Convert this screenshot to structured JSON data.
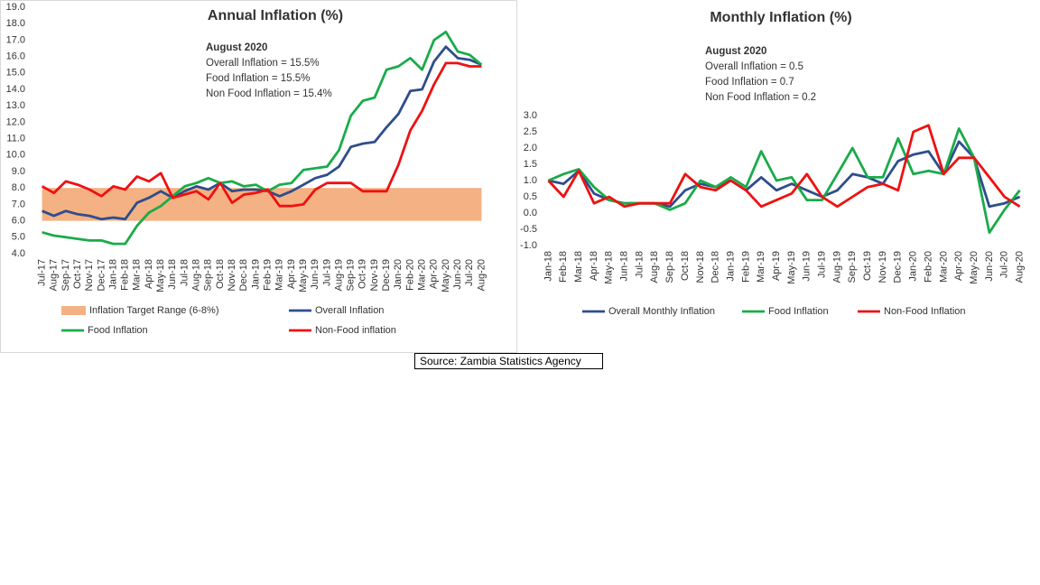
{
  "chart_data": [
    {
      "type": "line",
      "title": "Annual Inflation (%)",
      "annotations": [
        "August 2020",
        "Overall Inflation = 15.5%",
        "Food Inflation = 15.5%",
        "Non Food Inflation = 15.4%"
      ],
      "categories": [
        "Jul-17",
        "Aug-17",
        "Sep-17",
        "Oct-17",
        "Nov-17",
        "Dec-17",
        "Jan-18",
        "Feb-18",
        "Mar-18",
        "Apr-18",
        "May-18",
        "Jun-18",
        "Jul-18",
        "Aug-18",
        "Sep-18",
        "Oct-18",
        "Nov-18",
        "Dec-18",
        "Jan-19",
        "Feb-19",
        "Mar-19",
        "Apr-19",
        "May-19",
        "Jun-19",
        "Jul-19",
        "Aug-19",
        "Sep-19",
        "Oct-19",
        "Nov-19",
        "Dec-19",
        "Jan-20",
        "Feb-20",
        "Mar-20",
        "Apr-20",
        "May-20",
        "Jun-20",
        "Jul-20",
        "Aug-20"
      ],
      "band": {
        "name": "Inflation Target Range (6-8%)",
        "range": [
          6,
          8
        ],
        "color": "#f4b183"
      },
      "series": [
        {
          "name": "Overall Inflation",
          "color": "#2e4d8c",
          "values": [
            6.6,
            6.3,
            6.6,
            6.4,
            6.3,
            6.1,
            6.2,
            6.1,
            7.1,
            7.4,
            7.8,
            7.4,
            7.8,
            8.1,
            7.9,
            8.3,
            7.8,
            7.9,
            7.9,
            7.8,
            7.5,
            7.8,
            8.2,
            8.6,
            8.8,
            9.3,
            10.5,
            10.7,
            10.8,
            11.7,
            12.5,
            13.9,
            14.0,
            15.7,
            16.6,
            15.9,
            15.8,
            15.5
          ]
        },
        {
          "name": "Food Inflation",
          "color": "#1aab4a",
          "values": [
            5.3,
            5.1,
            5.0,
            4.9,
            4.8,
            4.8,
            4.6,
            4.6,
            5.7,
            6.5,
            6.9,
            7.5,
            8.1,
            8.3,
            8.6,
            8.3,
            8.4,
            8.1,
            8.2,
            7.8,
            8.2,
            8.3,
            9.1,
            9.2,
            9.3,
            10.3,
            12.4,
            13.3,
            13.5,
            15.2,
            15.4,
            15.9,
            15.2,
            17.0,
            17.5,
            16.3,
            16.1,
            15.5
          ]
        },
        {
          "name": "Non-Food inflation",
          "color": "#ee1111",
          "values": [
            8.1,
            7.7,
            8.4,
            8.2,
            7.9,
            7.5,
            8.1,
            7.9,
            8.7,
            8.4,
            8.9,
            7.4,
            7.6,
            7.8,
            7.3,
            8.3,
            7.1,
            7.6,
            7.7,
            7.9,
            6.9,
            6.9,
            7.0,
            7.9,
            8.3,
            8.3,
            8.3,
            7.8,
            7.8,
            7.8,
            9.4,
            11.5,
            12.7,
            14.3,
            15.6,
            15.6,
            15.4,
            15.4
          ]
        }
      ],
      "ylim": [
        4,
        19
      ],
      "yticks": [
        {
          "value": 4,
          "label": "4.0"
        },
        {
          "value": 5,
          "label": "5.0"
        },
        {
          "value": 6,
          "label": "6.0"
        },
        {
          "value": 7,
          "label": "7.0"
        },
        {
          "value": 8,
          "label": "8.0"
        },
        {
          "value": 9,
          "label": "9.0"
        },
        {
          "value": 10,
          "label": "10.0"
        },
        {
          "value": 11,
          "label": "11.0"
        },
        {
          "value": 12,
          "label": "12.0"
        },
        {
          "value": 13,
          "label": "13.0"
        },
        {
          "value": 14,
          "label": "14.0"
        },
        {
          "value": 15,
          "label": "15.0"
        },
        {
          "value": 16,
          "label": "16.0"
        },
        {
          "value": 17,
          "label": "17.0"
        },
        {
          "value": 18,
          "label": "18.0"
        },
        {
          "value": 19,
          "label": "19.0"
        }
      ]
    },
    {
      "type": "line",
      "title": "Monthly Inflation (%)",
      "annotations": [
        "August 2020",
        "Overall Inflation = 0.5",
        "Food Inflation = 0.7",
        "Non Food Inflation = 0.2"
      ],
      "categories": [
        "Jan-18",
        "Feb-18",
        "Mar-18",
        "Apr-18",
        "May-18",
        "Jun-18",
        "Jul-18",
        "Aug-18",
        "Sep-18",
        "Oct-18",
        "Nov-18",
        "Dec-18",
        "Jan-19",
        "Feb-19",
        "Mar-19",
        "Apr-19",
        "May-19",
        "Jun-19",
        "Jul-19",
        "Aug-19",
        "Sep-19",
        "Oct-19",
        "Nov-19",
        "Dec-19",
        "Jan-20",
        "Feb-20",
        "Mar-20",
        "Apr-20",
        "May-20",
        "Jun-20",
        "Jul-20",
        "Aug-20"
      ],
      "series": [
        {
          "name": "Overall Monthly Inflation",
          "color": "#2e4d8c",
          "values": [
            1.0,
            0.9,
            1.3,
            0.6,
            0.4,
            0.3,
            0.3,
            0.3,
            0.2,
            0.7,
            0.9,
            0.8,
            1.0,
            0.7,
            1.1,
            0.7,
            0.9,
            0.7,
            0.5,
            0.7,
            1.2,
            1.1,
            0.9,
            1.6,
            1.8,
            1.9,
            1.2,
            2.2,
            1.7,
            0.2,
            0.3,
            0.5
          ]
        },
        {
          "name": "Food Inflation",
          "color": "#1aab4a",
          "values": [
            1.0,
            1.2,
            1.35,
            0.8,
            0.4,
            0.3,
            0.3,
            0.3,
            0.1,
            0.3,
            1.0,
            0.8,
            1.1,
            0.8,
            1.9,
            1.0,
            1.1,
            0.4,
            0.4,
            1.2,
            2.0,
            1.1,
            1.1,
            2.3,
            1.2,
            1.3,
            1.2,
            2.6,
            1.7,
            -0.6,
            0.1,
            0.7
          ]
        },
        {
          "name": "Non-Food Inflation",
          "color": "#ee1111",
          "values": [
            1.0,
            0.5,
            1.3,
            0.3,
            0.5,
            0.2,
            0.3,
            0.3,
            0.3,
            1.2,
            0.8,
            0.7,
            1.0,
            0.7,
            0.2,
            0.4,
            0.6,
            1.2,
            0.5,
            0.2,
            0.5,
            0.8,
            0.9,
            0.7,
            2.5,
            2.7,
            1.2,
            1.7,
            1.7,
            1.1,
            0.5,
            0.2
          ]
        }
      ],
      "ylim": [
        -1,
        3
      ],
      "yticks": [
        {
          "value": -1,
          "label": "-1.0"
        },
        -0.5,
        {
          "value": 0,
          "label": "0.0"
        },
        0.5,
        {
          "value": 1,
          "label": "1.0"
        },
        1.5,
        {
          "value": 2,
          "label": "2.0"
        },
        2.5,
        {
          "value": 3,
          "label": "3.0"
        }
      ]
    }
  ],
  "source": "Source: Zambia Statistics Agency"
}
